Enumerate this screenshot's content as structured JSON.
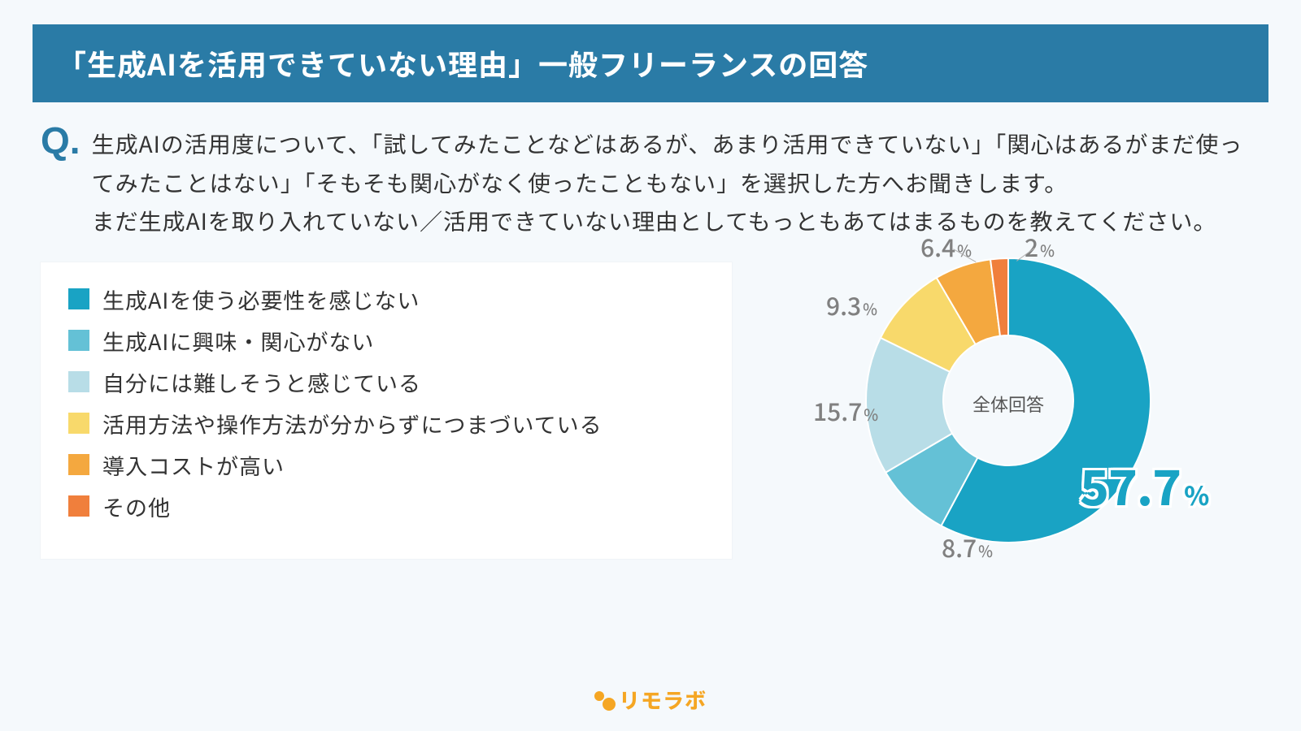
{
  "title": "「生成AIを活用できていない理由」一般フリーランスの回答",
  "question_marker": "Q.",
  "question_text": "生成AIの活用度について、「試してみたことなどはあるが、あまり活用できていない」「関心はあるがまだ使ってみたことはない」「そもそも関心がなく使ったこともない」を選択した方へお聞きします。\nまだ生成AIを取り入れていない／活用できていない理由としてもっともあてはまるものを教えてください。",
  "chart": {
    "type": "donut",
    "center_label": "全体回答",
    "inner_radius": 80,
    "outer_radius": 175,
    "background_color": "#f5f9fc",
    "label_color": "#808080",
    "label_fontsize": 30,
    "label_unit_fontsize": 19,
    "highlight_color": "#19a3c4",
    "highlight_fontsize": 60,
    "slices": [
      {
        "label": "生成AIを使う必要性を感じない",
        "value": 57.7,
        "color": "#19a3c4",
        "display": "57.7",
        "highlight": true
      },
      {
        "label": "生成AIに興味・関心がない",
        "value": 8.7,
        "color": "#64c1d6",
        "display": "8.7"
      },
      {
        "label": "自分には難しそうと感じている",
        "value": 15.7,
        "color": "#b8dde7",
        "display": "15.7"
      },
      {
        "label": "活用方法や操作方法が分からずにつまづいている",
        "value": 9.3,
        "color": "#f8d96b",
        "display": "9.3"
      },
      {
        "label": "導入コストが高い",
        "value": 6.4,
        "color": "#f4a83f",
        "display": "6.4"
      },
      {
        "label": "その他",
        "value": 2.0,
        "color": "#f07f3c",
        "display": "2"
      }
    ]
  },
  "footer_brand": "リモラボ"
}
